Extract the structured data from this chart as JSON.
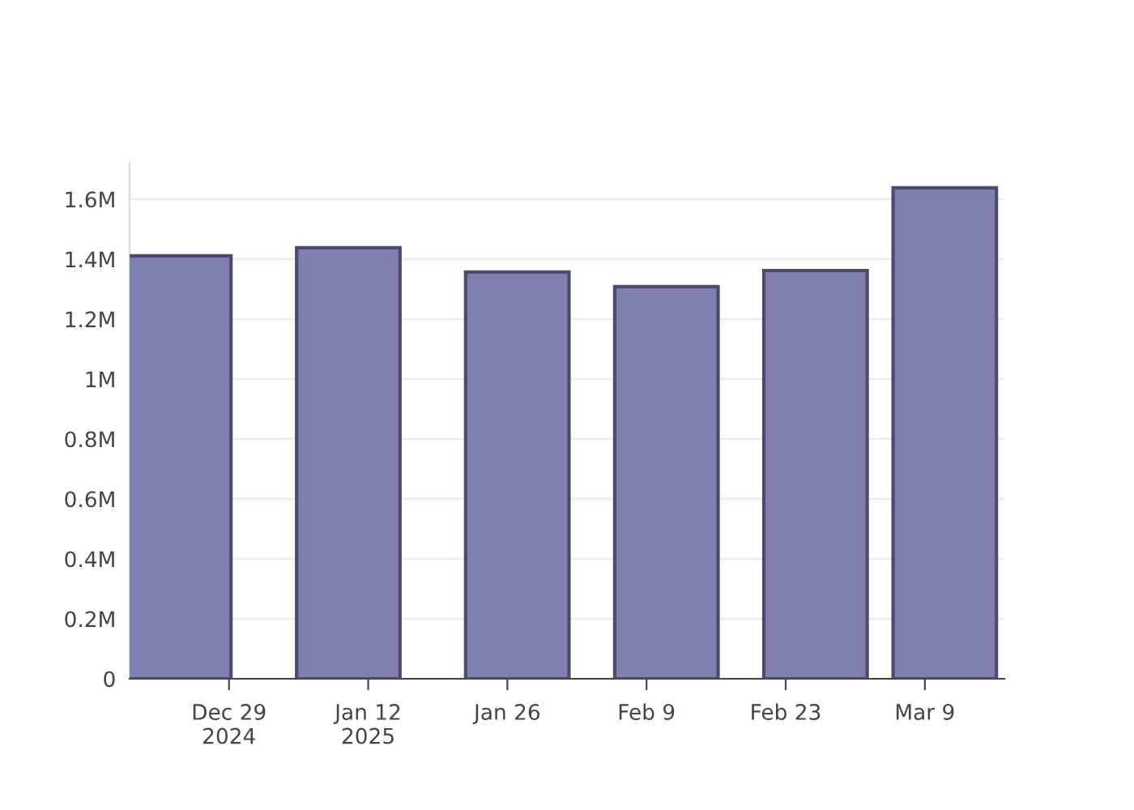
{
  "chart_data": {
    "type": "bar",
    "x": [
      "2024-12-24",
      "2025-01-10",
      "2025-01-27",
      "2025-02-11",
      "2025-02-26",
      "2025-03-11"
    ],
    "values": [
      1411000,
      1438000,
      1357000,
      1308000,
      1362000,
      1638000
    ],
    "color": "#7f7fb0",
    "xlim": [
      "2024-12-19",
      "2025-03-17"
    ],
    "xticks": [
      {
        "value": "2024-12-29",
        "label": "Dec 29\n2024"
      },
      {
        "value": "2025-01-12",
        "label": "Jan 12\n2025"
      },
      {
        "value": "2025-01-26",
        "label": "Jan 26"
      },
      {
        "value": "2025-02-09",
        "label": "Feb 9"
      },
      {
        "value": "2025-02-23",
        "label": "Feb 23"
      },
      {
        "value": "2025-03-09",
        "label": "Mar 9"
      }
    ],
    "ylim": [
      0,
      1724000
    ],
    "yticks": [
      {
        "value": 0,
        "label": "0"
      },
      {
        "value": 200000,
        "label": "0.2M"
      },
      {
        "value": 400000,
        "label": "0.4M"
      },
      {
        "value": 600000,
        "label": "0.6M"
      },
      {
        "value": 800000,
        "label": "0.8M"
      },
      {
        "value": 1000000,
        "label": "1M"
      },
      {
        "value": 1200000,
        "label": "1.2M"
      },
      {
        "value": 1400000,
        "label": "1.4M"
      },
      {
        "value": 1600000,
        "label": "1.6M"
      }
    ],
    "grid": "y"
  }
}
